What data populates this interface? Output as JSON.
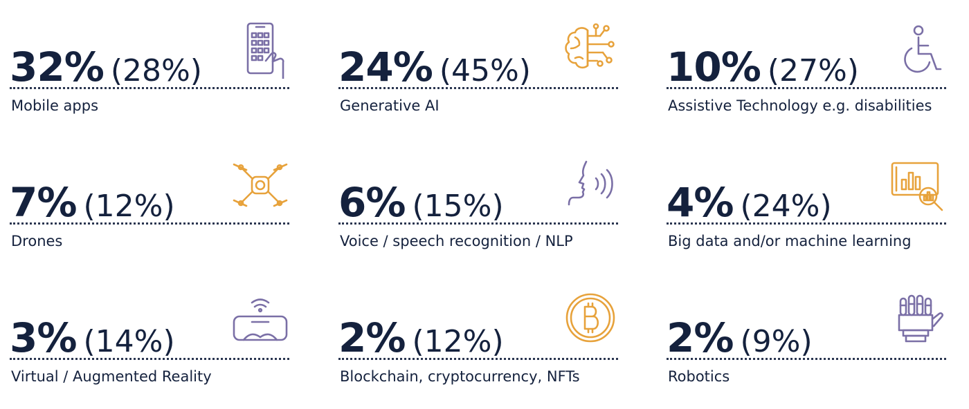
{
  "colors": {
    "text": "#14213d",
    "icon_purple": "#7a6fa6",
    "icon_orange": "#e7a23b"
  },
  "items": [
    {
      "value": "32%",
      "previous": "(28%)",
      "label": "Mobile apps",
      "icon": "smartphone-touch-icon",
      "icon_color": "#7a6fa6"
    },
    {
      "value": "24%",
      "previous": "(45%)",
      "label": "Generative AI",
      "icon": "brain-circuit-icon",
      "icon_color": "#e7a23b"
    },
    {
      "value": "10%",
      "previous": "(27%)",
      "label": "Assistive Technology e.g. disabilities",
      "icon": "wheelchair-icon",
      "icon_color": "#7a6fa6"
    },
    {
      "value": "7%",
      "previous": "(12%)",
      "label": "Drones",
      "icon": "drone-icon",
      "icon_color": "#e7a23b"
    },
    {
      "value": "6%",
      "previous": "(15%)",
      "label": "Voice / speech recognition / NLP",
      "icon": "speaking-head-icon",
      "icon_color": "#7a6fa6"
    },
    {
      "value": "4%",
      "previous": "(24%)",
      "label": "Big data and/or machine learning",
      "icon": "data-analysis-icon",
      "icon_color": "#e7a23b"
    },
    {
      "value": "3%",
      "previous": "(14%)",
      "label": "Virtual / Augmented Reality",
      "icon": "vr-headset-icon",
      "icon_color": "#7a6fa6"
    },
    {
      "value": "2%",
      "previous": "(12%)",
      "label": "Blockchain, cryptocurrency, NFTs",
      "icon": "bitcoin-icon",
      "icon_color": "#e7a23b"
    },
    {
      "value": "2%",
      "previous": "(9%)",
      "label": "Robotics",
      "icon": "robot-hand-icon",
      "icon_color": "#7a6fa6"
    }
  ]
}
